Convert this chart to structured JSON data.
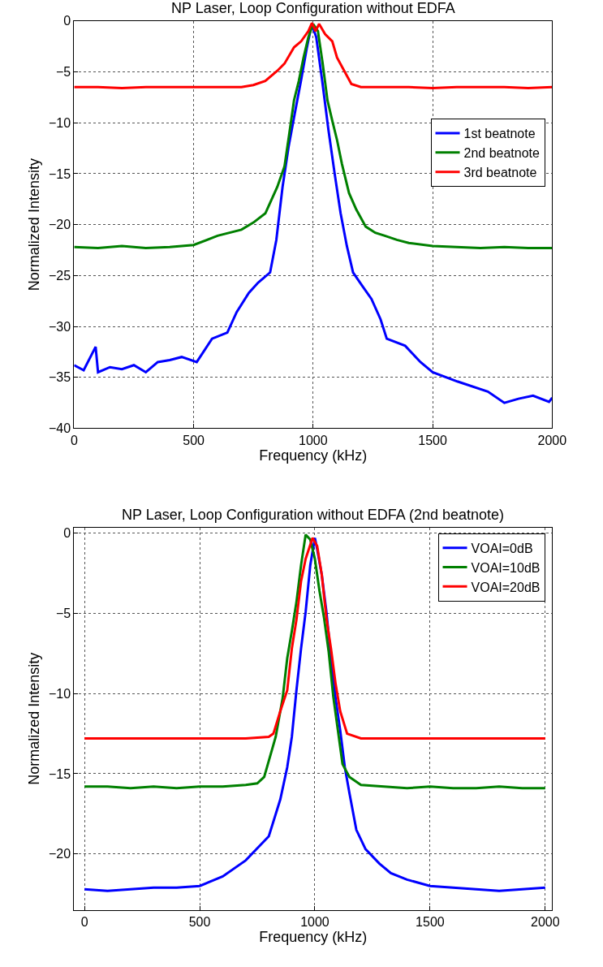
{
  "chart_data": [
    {
      "type": "line",
      "title": "NP Laser, Loop Configuration without EDFA",
      "xlabel": "Frequency (kHz)",
      "ylabel": "Normalized Intensity",
      "xlim": [
        0,
        2000
      ],
      "xticks": [
        0,
        500,
        1000,
        1500,
        2000
      ],
      "ylim": [
        -40,
        0
      ],
      "yticks": [
        -40,
        -35,
        -30,
        -25,
        -20,
        -15,
        -10,
        -5,
        0
      ],
      "grid": true,
      "legend": "right",
      "series": [
        {
          "name": "1st beatnote",
          "color": "#0000ff",
          "x": [
            0,
            40,
            90,
            100,
            150,
            200,
            250,
            300,
            350,
            400,
            450,
            513,
            577,
            641,
            680,
            731,
            770,
            820,
            846,
            872,
            897,
            923,
            949,
            974,
            994,
            1013,
            1038,
            1064,
            1090,
            1115,
            1141,
            1167,
            1205,
            1244,
            1282,
            1308,
            1385,
            1449,
            1500,
            1603,
            1731,
            1800,
            1859,
            1920,
            1987,
            2000
          ],
          "values": [
            -33.8,
            -34.3,
            -32,
            -34.5,
            -34,
            -34.2,
            -33.8,
            -34.5,
            -33.5,
            -33.3,
            -33,
            -33.5,
            -31.2,
            -30.6,
            -28.6,
            -26.7,
            -25.7,
            -24.7,
            -21.5,
            -16.3,
            -12.4,
            -9.1,
            -5.9,
            -2.6,
            -0.3,
            -1.6,
            -5.9,
            -10.7,
            -15,
            -18.9,
            -22.1,
            -24.7,
            -26,
            -27.3,
            -29.3,
            -31.2,
            -31.9,
            -33.5,
            -34.5,
            -35.4,
            -36.4,
            -37.5,
            -37.1,
            -36.8,
            -37.4,
            -37
          ]
        },
        {
          "name": "2nd beatnote",
          "color": "#008000",
          "x": [
            0,
            100,
            200,
            300,
            400,
            500,
            600,
            700,
            750,
            800,
            850,
            880,
            900,
            920,
            940,
            960,
            980,
            1000,
            1020,
            1040,
            1060,
            1080,
            1100,
            1120,
            1150,
            1180,
            1220,
            1260,
            1300,
            1350,
            1400,
            1500,
            1600,
            1700,
            1800,
            1900,
            2000
          ],
          "values": [
            -22.2,
            -22.3,
            -22.1,
            -22.3,
            -22.2,
            -22,
            -21.1,
            -20.5,
            -19.8,
            -18.9,
            -16.3,
            -14.3,
            -11.1,
            -7.8,
            -5.9,
            -3.6,
            -1.6,
            -0.3,
            -1,
            -4.2,
            -7.8,
            -9.8,
            -11.7,
            -14,
            -16.9,
            -18.5,
            -20.2,
            -20.8,
            -21.1,
            -21.5,
            -21.8,
            -22.1,
            -22.2,
            -22.3,
            -22.2,
            -22.3,
            -22.3
          ]
        },
        {
          "name": "3rd beatnote",
          "color": "#ff0000",
          "x": [
            0,
            100,
            200,
            300,
            400,
            500,
            600,
            700,
            750,
            800,
            850,
            880,
            920,
            950,
            980,
            995,
            1010,
            1025,
            1050,
            1080,
            1100,
            1130,
            1160,
            1200,
            1300,
            1400,
            1500,
            1600,
            1700,
            1800,
            1900,
            2000
          ],
          "values": [
            -6.5,
            -6.5,
            -6.6,
            -6.5,
            -6.5,
            -6.5,
            -6.5,
            -6.5,
            -6.3,
            -5.9,
            -4.9,
            -4.2,
            -2.6,
            -2,
            -1,
            -0.2,
            -1,
            -0.3,
            -1.3,
            -2,
            -3.6,
            -4.9,
            -6.2,
            -6.5,
            -6.5,
            -6.5,
            -6.6,
            -6.5,
            -6.5,
            -6.5,
            -6.6,
            -6.5
          ]
        }
      ]
    },
    {
      "type": "line",
      "title": "NP Laser, Loop Configuration without EDFA (2nd beatnote)",
      "xlabel": "Frequency (kHz)",
      "ylabel": "Normalized Intensity",
      "xlim": [
        -45,
        2030
      ],
      "xticks": [
        0,
        500,
        1000,
        1500,
        2000
      ],
      "ylim": [
        -23.5,
        0.35
      ],
      "yticks": [
        -20,
        -15,
        -10,
        -5,
        0
      ],
      "grid": true,
      "legend": "top right",
      "series": [
        {
          "name": "VOAI=0dB",
          "color": "#0000ff",
          "x": [
            0,
            100,
            200,
            300,
            400,
            500,
            600,
            700,
            800,
            850,
            880,
            900,
            920,
            940,
            960,
            980,
            1000,
            1010,
            1030,
            1050,
            1070,
            1090,
            1110,
            1130,
            1150,
            1180,
            1220,
            1280,
            1330,
            1400,
            1500,
            1600,
            1700,
            1800,
            1900,
            2000
          ],
          "values": [
            -22.2,
            -22.3,
            -22.2,
            -22.1,
            -22.1,
            -22,
            -21.4,
            -20.4,
            -18.9,
            -16.6,
            -14.6,
            -12.7,
            -9.8,
            -7.2,
            -4.9,
            -2,
            -0.3,
            -1,
            -2.6,
            -4.9,
            -7.8,
            -10.3,
            -12.3,
            -14.6,
            -16.2,
            -18.5,
            -19.7,
            -20.6,
            -21.2,
            -21.6,
            -22,
            -22.1,
            -22.2,
            -22.3,
            -22.2,
            -22.1
          ]
        },
        {
          "name": "VOAI=10dB",
          "color": "#008000",
          "x": [
            0,
            100,
            200,
            300,
            400,
            500,
            600,
            700,
            750,
            780,
            800,
            830,
            860,
            880,
            900,
            920,
            940,
            960,
            980,
            1000,
            1020,
            1040,
            1060,
            1080,
            1100,
            1120,
            1150,
            1200,
            1300,
            1400,
            1500,
            1600,
            1700,
            1800,
            1900,
            2000
          ],
          "values": [
            -15.8,
            -15.8,
            -15.9,
            -15.8,
            -15.9,
            -15.8,
            -15.8,
            -15.7,
            -15.6,
            -15.2,
            -14.2,
            -12.7,
            -10.3,
            -7.8,
            -6.1,
            -4.3,
            -2,
            -0.1,
            -0.4,
            -1.6,
            -3.6,
            -5.3,
            -7.4,
            -10.2,
            -12.3,
            -14.4,
            -15.2,
            -15.7,
            -15.8,
            -15.9,
            -15.8,
            -15.9,
            -15.9,
            -15.8,
            -15.9,
            -15.9
          ]
        },
        {
          "name": "VOAI=20dB",
          "color": "#ff0000",
          "x": [
            0,
            100,
            200,
            300,
            400,
            500,
            600,
            700,
            800,
            820,
            850,
            880,
            900,
            920,
            940,
            960,
            990,
            1010,
            1030,
            1050,
            1070,
            1090,
            1110,
            1140,
            1200,
            1300,
            1400,
            1500,
            1600,
            1700,
            1800,
            1900,
            2000
          ],
          "values": [
            -12.8,
            -12.8,
            -12.8,
            -12.8,
            -12.8,
            -12.8,
            -12.8,
            -12.8,
            -12.7,
            -12.5,
            -11.1,
            -9.8,
            -7.2,
            -5.4,
            -3,
            -1.6,
            -0.3,
            -0.8,
            -2.6,
            -5.3,
            -7.2,
            -9.4,
            -11.1,
            -12.5,
            -12.8,
            -12.8,
            -12.8,
            -12.8,
            -12.8,
            -12.8,
            -12.8,
            -12.8,
            -12.8
          ]
        }
      ]
    }
  ]
}
